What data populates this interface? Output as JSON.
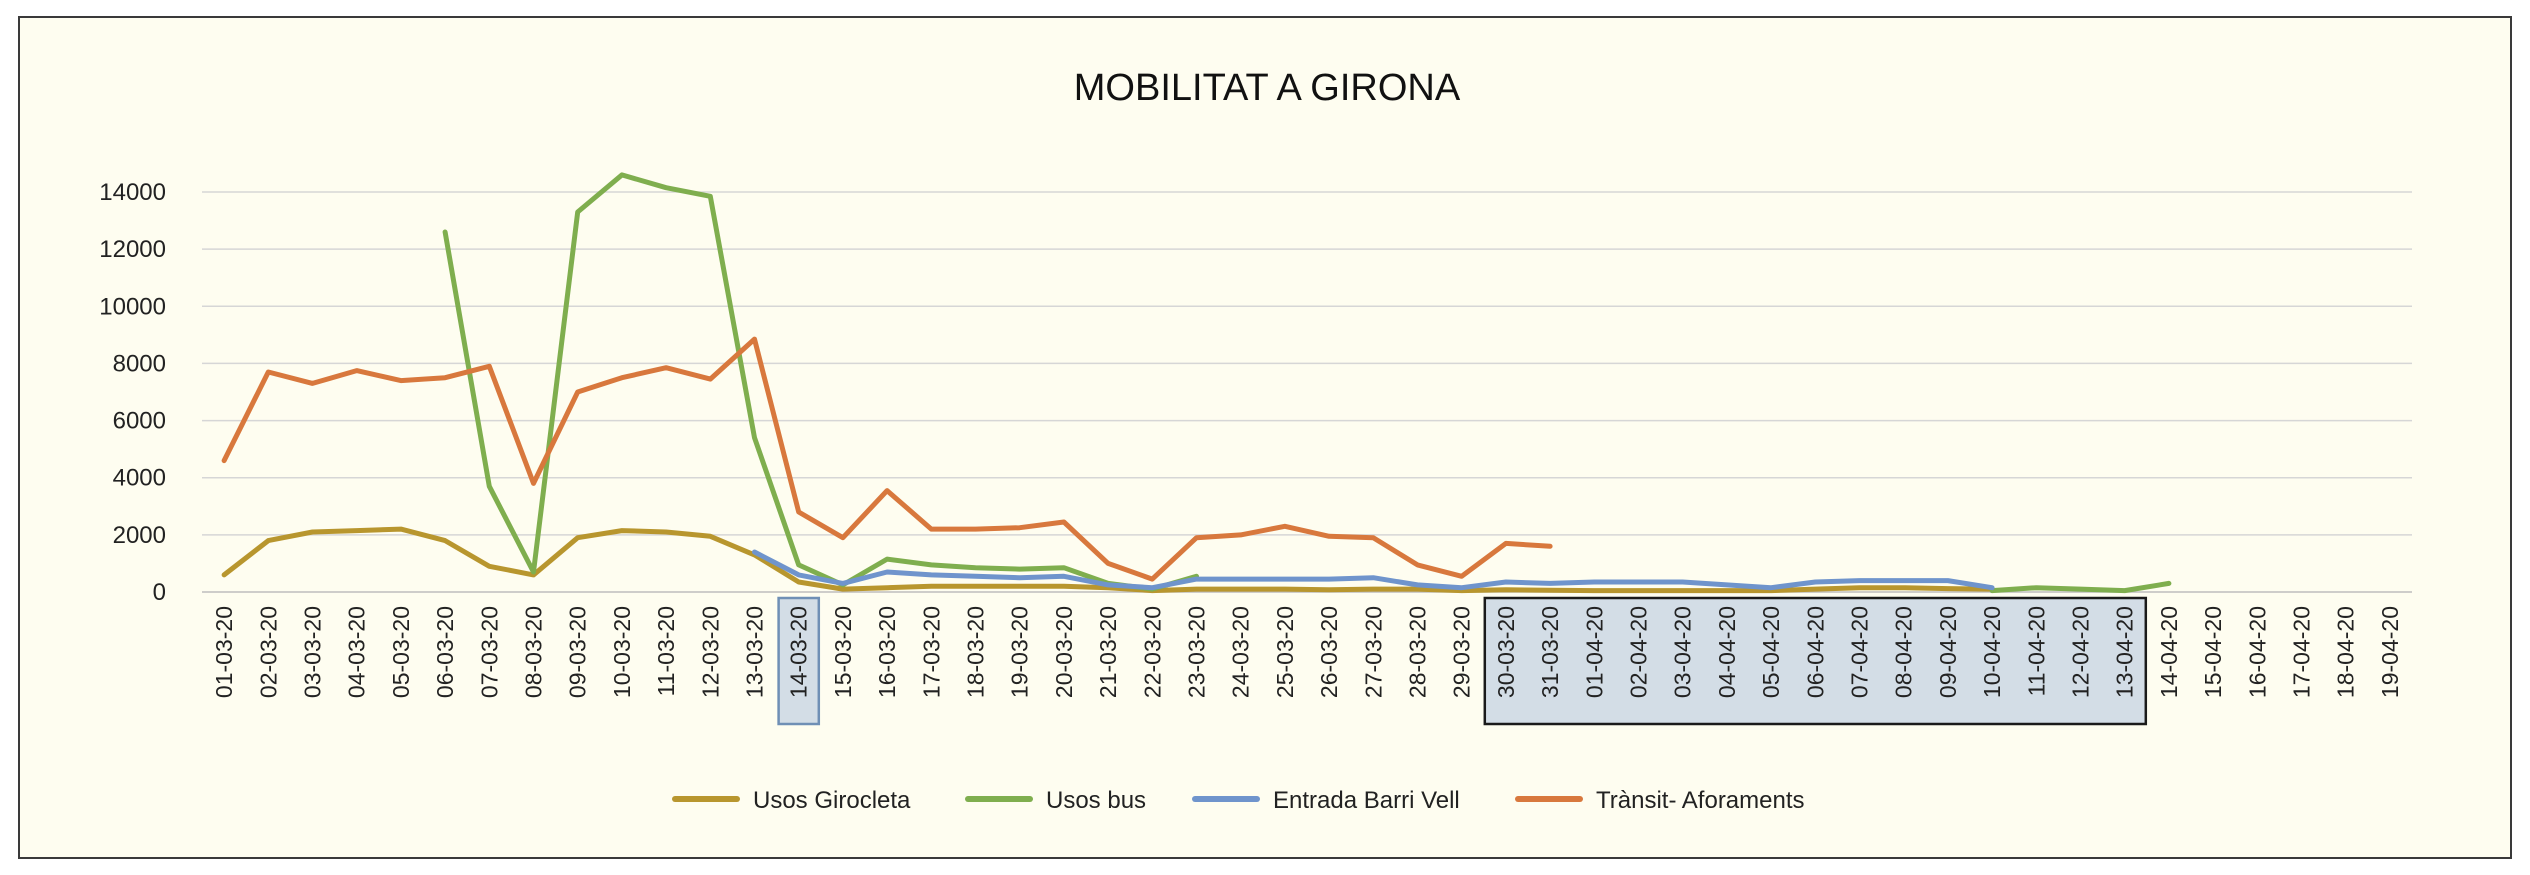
{
  "chart_data": {
    "type": "line",
    "title": "MOBILITAT A GIRONA",
    "xlabel": "",
    "ylabel": "",
    "ylim": [
      0,
      14000
    ],
    "yticks": [
      0,
      2000,
      4000,
      6000,
      8000,
      10000,
      12000,
      14000
    ],
    "grid": true,
    "legend_position": "bottom",
    "highlighted_ranges": [
      [
        "14-03-20",
        "14-03-20"
      ],
      [
        "30-03-20",
        "13-04-20"
      ]
    ],
    "categories": [
      "01-03-20",
      "02-03-20",
      "03-03-20",
      "04-03-20",
      "05-03-20",
      "06-03-20",
      "07-03-20",
      "08-03-20",
      "09-03-20",
      "10-03-20",
      "11-03-20",
      "12-03-20",
      "13-03-20",
      "14-03-20",
      "15-03-20",
      "16-03-20",
      "17-03-20",
      "18-03-20",
      "19-03-20",
      "20-03-20",
      "21-03-20",
      "22-03-20",
      "23-03-20",
      "24-03-20",
      "25-03-20",
      "26-03-20",
      "27-03-20",
      "28-03-20",
      "29-03-20",
      "30-03-20",
      "31-03-20",
      "01-04-20",
      "02-04-20",
      "03-04-20",
      "04-04-20",
      "05-04-20",
      "06-04-20",
      "07-04-20",
      "08-04-20",
      "09-04-20",
      "10-04-20",
      "11-04-20",
      "12-04-20",
      "13-04-20",
      "14-04-20",
      "15-04-20",
      "16-04-20",
      "17-04-20",
      "18-04-20",
      "19-04-20"
    ],
    "series": [
      {
        "name": "Usos Girocleta",
        "color": "#b8962e",
        "values": [
          600,
          1800,
          2100,
          2150,
          2200,
          1800,
          900,
          600,
          1900,
          2150,
          2100,
          1950,
          1300,
          350,
          100,
          150,
          200,
          200,
          200,
          200,
          150,
          50,
          100,
          100,
          100,
          80,
          100,
          100,
          50,
          80,
          60,
          50,
          50,
          50,
          50,
          50,
          100,
          150,
          150,
          120,
          100,
          null,
          null,
          null,
          null,
          null,
          null,
          null,
          null,
          null
        ]
      },
      {
        "name": "Usos bus",
        "color": "#7fae4e",
        "values": [
          null,
          null,
          null,
          null,
          null,
          12600,
          3700,
          700,
          13300,
          14600,
          14150,
          13850,
          5400,
          950,
          250,
          1150,
          950,
          850,
          800,
          850,
          300,
          100,
          550,
          null,
          null,
          null,
          null,
          null,
          null,
          null,
          null,
          null,
          null,
          null,
          null,
          null,
          null,
          null,
          null,
          null,
          50,
          150,
          100,
          50,
          300,
          null,
          null,
          null,
          null,
          null
        ]
      },
      {
        "name": "Entrada Barri Vell",
        "color": "#6f94cc",
        "values": [
          null,
          null,
          null,
          null,
          null,
          null,
          null,
          null,
          null,
          null,
          null,
          null,
          1400,
          600,
          300,
          700,
          600,
          550,
          500,
          550,
          250,
          150,
          450,
          450,
          450,
          450,
          500,
          250,
          150,
          350,
          300,
          350,
          350,
          350,
          250,
          150,
          350,
          400,
          400,
          400,
          150,
          null,
          null,
          null,
          null,
          null,
          null,
          null,
          null,
          null
        ]
      },
      {
        "name": "Trànsit- Aforaments",
        "color": "#d8783d",
        "values": [
          4600,
          7700,
          7300,
          7750,
          7400,
          7500,
          7900,
          3800,
          7000,
          7500,
          7850,
          7450,
          8850,
          2800,
          1900,
          3550,
          2200,
          2200,
          2250,
          2450,
          1000,
          450,
          1900,
          2000,
          2300,
          1950,
          1900,
          950,
          550,
          1700,
          1600,
          null,
          null,
          null,
          null,
          null,
          null,
          null,
          null,
          null,
          null,
          null,
          null,
          null,
          null,
          null,
          null,
          null,
          null,
          null
        ]
      }
    ]
  }
}
